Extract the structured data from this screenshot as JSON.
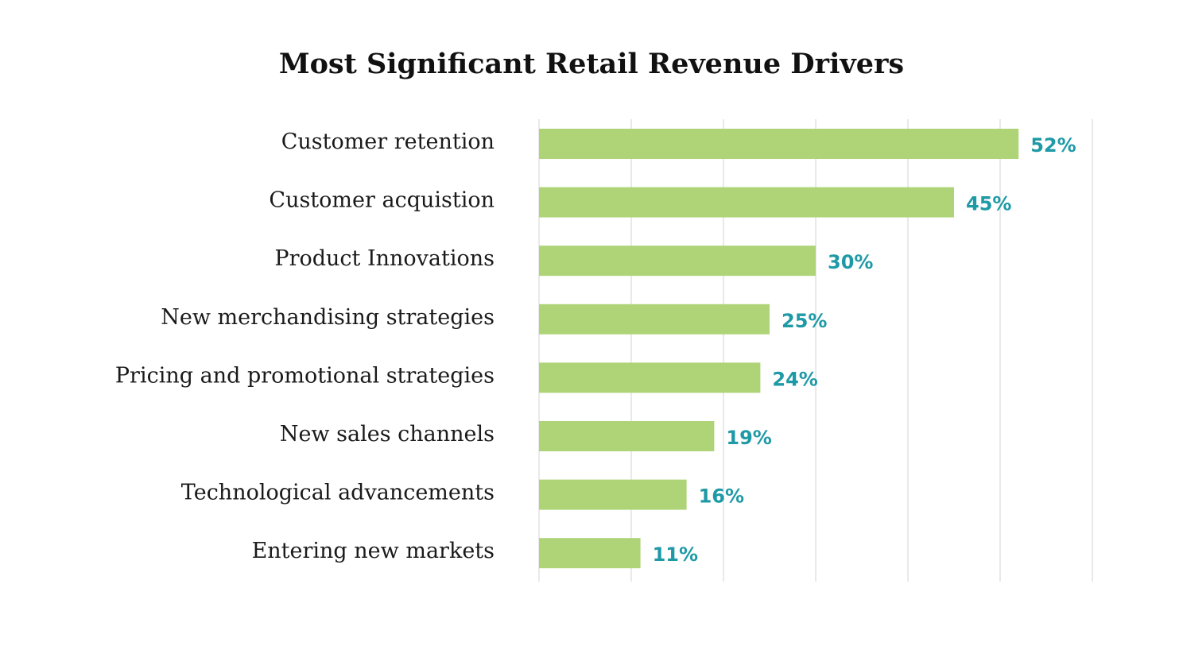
{
  "chart_data": {
    "type": "bar",
    "orientation": "horizontal",
    "title": "Most Significant Retail Revenue Drivers",
    "xlabel": "",
    "ylabel": "",
    "categories": [
      "Customer retention",
      "Customer acquistion",
      "Product Innovations",
      "New merchandising strategies",
      "Pricing and promotional strategies",
      "New sales channels",
      "Technological advancements",
      "Entering new markets"
    ],
    "values": [
      52,
      45,
      30,
      25,
      24,
      19,
      16,
      11
    ],
    "value_labels": [
      "52%",
      "45%",
      "30%",
      "25%",
      "24%",
      "19%",
      "16%",
      "11%"
    ],
    "xlim": [
      0,
      60
    ],
    "grid": true,
    "legend": "none",
    "colors": {
      "bar": "#aed477",
      "value_label": "#1e9aa6",
      "grid": "#e9e9e9",
      "title": "#111111",
      "category_label": "#1a1a1a"
    }
  }
}
